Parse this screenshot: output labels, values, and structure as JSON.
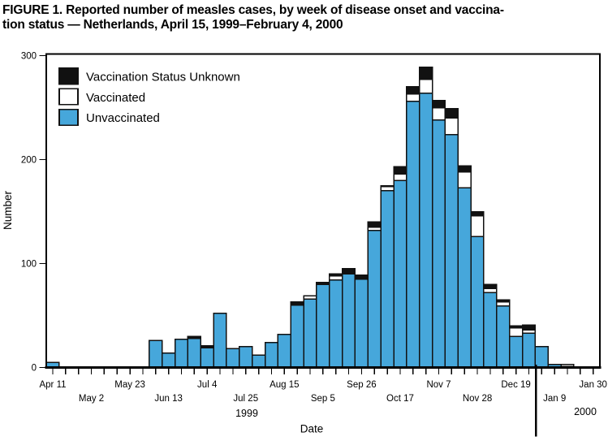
{
  "figure": {
    "title_line1": "FIGURE 1. Reported number of measles cases, by week of disease onset and vaccina-",
    "title_line2": "tion status — Netherlands, April 15, 1999–February 4, 2000"
  },
  "colors": {
    "bar_blue": "#46a7db",
    "segment_white": "#ffffff",
    "segment_black": "#111111",
    "stroke": "#111111",
    "background": "#ffffff"
  },
  "chart_data": {
    "type": "bar",
    "stacked": true,
    "title": "Reported number of measles cases, by week of disease onset and vaccination status — Netherlands, April 15, 1999–February 4, 2000",
    "xlabel": "Date",
    "ylabel": "Number",
    "ylim": [
      0,
      300
    ],
    "yticks": [
      0,
      100,
      200,
      300
    ],
    "grid": false,
    "legend_position": "top-left-inside",
    "legend": [
      {
        "label": "Vaccination Status Unknown",
        "color": "#111111"
      },
      {
        "label": "Vaccinated",
        "color": "#ffffff"
      },
      {
        "label": "Unvaccinated",
        "color": "#46a7db"
      }
    ],
    "series_order_bottom_to_top": [
      "Unvaccinated",
      "Vaccinated",
      "Vaccination Status Unknown"
    ],
    "x_axis": {
      "unit": "week of disease onset",
      "year_left": "1999",
      "year_right": "2000",
      "year_divider_between": [
        "Dec 26",
        "Jan 2"
      ],
      "tick_labels": [
        {
          "week": 0,
          "label": "Apr 11"
        },
        {
          "week": 3,
          "label": "May 2"
        },
        {
          "week": 6,
          "label": "May 23"
        },
        {
          "week": 9,
          "label": "Jun 13"
        },
        {
          "week": 12,
          "label": "Jul 4"
        },
        {
          "week": 15,
          "label": "Jul 25"
        },
        {
          "week": 18,
          "label": "Aug 15"
        },
        {
          "week": 21,
          "label": "Sep 5"
        },
        {
          "week": 24,
          "label": "Sep 26"
        },
        {
          "week": 27,
          "label": "Oct 17"
        },
        {
          "week": 30,
          "label": "Nov 7"
        },
        {
          "week": 33,
          "label": "Nov 28"
        },
        {
          "week": 36,
          "label": "Dec 19"
        },
        {
          "week": 39,
          "label": "Jan 9"
        },
        {
          "week": 42,
          "label": "Jan 30"
        }
      ]
    },
    "weeks": [
      {
        "date": "Apr 11",
        "unvaccinated": 5,
        "vaccinated": 0,
        "unknown": 0
      },
      {
        "date": "Apr 18",
        "unvaccinated": 0,
        "vaccinated": 0,
        "unknown": 0
      },
      {
        "date": "Apr 25",
        "unvaccinated": 0,
        "vaccinated": 0,
        "unknown": 0
      },
      {
        "date": "May 2",
        "unvaccinated": 0,
        "vaccinated": 0,
        "unknown": 0
      },
      {
        "date": "May 9",
        "unvaccinated": 0,
        "vaccinated": 0,
        "unknown": 0
      },
      {
        "date": "May 16",
        "unvaccinated": 0,
        "vaccinated": 0,
        "unknown": 0
      },
      {
        "date": "May 23",
        "unvaccinated": 0,
        "vaccinated": 0,
        "unknown": 0
      },
      {
        "date": "May 30",
        "unvaccinated": 0,
        "vaccinated": 0,
        "unknown": 0
      },
      {
        "date": "Jun 6",
        "unvaccinated": 26,
        "vaccinated": 0,
        "unknown": 0
      },
      {
        "date": "Jun 13",
        "unvaccinated": 14,
        "vaccinated": 0,
        "unknown": 0
      },
      {
        "date": "Jun 20",
        "unvaccinated": 27,
        "vaccinated": 0,
        "unknown": 0
      },
      {
        "date": "Jun 27",
        "unvaccinated": 28,
        "vaccinated": 0,
        "unknown": 2
      },
      {
        "date": "Jul 4",
        "unvaccinated": 19,
        "vaccinated": 0,
        "unknown": 2
      },
      {
        "date": "Jul 11",
        "unvaccinated": 52,
        "vaccinated": 0,
        "unknown": 0
      },
      {
        "date": "Jul 18",
        "unvaccinated": 18,
        "vaccinated": 0,
        "unknown": 0
      },
      {
        "date": "Jul 25",
        "unvaccinated": 20,
        "vaccinated": 0,
        "unknown": 0
      },
      {
        "date": "Aug 1",
        "unvaccinated": 12,
        "vaccinated": 0,
        "unknown": 0
      },
      {
        "date": "Aug 8",
        "unvaccinated": 24,
        "vaccinated": 0,
        "unknown": 0
      },
      {
        "date": "Aug 15",
        "unvaccinated": 32,
        "vaccinated": 0,
        "unknown": 0
      },
      {
        "date": "Aug 22",
        "unvaccinated": 60,
        "vaccinated": 0,
        "unknown": 3
      },
      {
        "date": "Aug 29",
        "unvaccinated": 66,
        "vaccinated": 3,
        "unknown": 0
      },
      {
        "date": "Sep 5",
        "unvaccinated": 80,
        "vaccinated": 0,
        "unknown": 2
      },
      {
        "date": "Sep 12",
        "unvaccinated": 84,
        "vaccinated": 4,
        "unknown": 2
      },
      {
        "date": "Sep 19",
        "unvaccinated": 90,
        "vaccinated": 0,
        "unknown": 5
      },
      {
        "date": "Sep 26",
        "unvaccinated": 85,
        "vaccinated": 0,
        "unknown": 4
      },
      {
        "date": "Oct 3",
        "unvaccinated": 132,
        "vaccinated": 3,
        "unknown": 5
      },
      {
        "date": "Oct 10",
        "unvaccinated": 170,
        "vaccinated": 4,
        "unknown": 1
      },
      {
        "date": "Oct 17",
        "unvaccinated": 180,
        "vaccinated": 6,
        "unknown": 7
      },
      {
        "date": "Oct 24",
        "unvaccinated": 256,
        "vaccinated": 7,
        "unknown": 7
      },
      {
        "date": "Oct 31",
        "unvaccinated": 264,
        "vaccinated": 13,
        "unknown": 12
      },
      {
        "date": "Nov 7",
        "unvaccinated": 238,
        "vaccinated": 12,
        "unknown": 7
      },
      {
        "date": "Nov 14",
        "unvaccinated": 224,
        "vaccinated": 16,
        "unknown": 9
      },
      {
        "date": "Nov 21",
        "unvaccinated": 173,
        "vaccinated": 15,
        "unknown": 6
      },
      {
        "date": "Nov 28",
        "unvaccinated": 126,
        "vaccinated": 20,
        "unknown": 4
      },
      {
        "date": "Dec 5",
        "unvaccinated": 72,
        "vaccinated": 4,
        "unknown": 4
      },
      {
        "date": "Dec 12",
        "unvaccinated": 59,
        "vaccinated": 4,
        "unknown": 2
      },
      {
        "date": "Dec 19",
        "unvaccinated": 30,
        "vaccinated": 8,
        "unknown": 2
      },
      {
        "date": "Dec 26",
        "unvaccinated": 33,
        "vaccinated": 3,
        "unknown": 5
      },
      {
        "date": "Jan 2",
        "unvaccinated": 20,
        "vaccinated": 0,
        "unknown": 0
      },
      {
        "date": "Jan 9",
        "unvaccinated": 3,
        "vaccinated": 0,
        "unknown": 0
      },
      {
        "date": "Jan 16",
        "unvaccinated": 1,
        "vaccinated": 2,
        "unknown": 0
      },
      {
        "date": "Jan 23",
        "unvaccinated": 0,
        "vaccinated": 0,
        "unknown": 0
      },
      {
        "date": "Jan 30",
        "unvaccinated": 0,
        "vaccinated": 0,
        "unknown": 0
      }
    ]
  }
}
